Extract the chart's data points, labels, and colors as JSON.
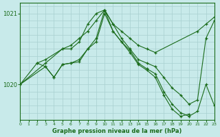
{
  "bg_color": "#c8eaea",
  "grid_color": "#a8d0d0",
  "line_color": "#1a6b1a",
  "title": "Graphe pression niveau de la mer (hPa)",
  "xmin": 0,
  "xmax": 23,
  "ymin": 1019.5,
  "ymax": 1021.15,
  "yticks": [
    1020,
    1021
  ],
  "lines": [
    {
      "x": [
        0,
        2,
        3,
        5,
        6,
        7,
        8,
        9,
        10,
        11,
        12,
        13,
        14,
        15,
        16,
        21,
        22,
        23
      ],
      "y": [
        1020.0,
        1020.3,
        1020.35,
        1020.5,
        1020.55,
        1020.65,
        1020.75,
        1020.9,
        1021.05,
        1020.85,
        1020.75,
        1020.65,
        1020.55,
        1020.5,
        1020.45,
        1020.75,
        1020.85,
        1020.95
      ]
    },
    {
      "x": [
        0,
        3,
        5,
        6,
        7,
        8,
        9,
        10,
        11,
        12,
        13,
        14,
        15,
        16,
        17,
        18,
        19,
        20,
        21,
        22,
        23
      ],
      "y": [
        1020.0,
        1020.3,
        1020.5,
        1020.5,
        1020.6,
        1020.85,
        1021.0,
        1021.05,
        1020.85,
        1020.65,
        1020.5,
        1020.35,
        1020.3,
        1020.25,
        1020.1,
        1019.95,
        1019.85,
        1019.72,
        1019.78,
        1020.65,
        1020.9
      ]
    },
    {
      "x": [
        0,
        3,
        4,
        5,
        6,
        7,
        8,
        9,
        10,
        11,
        12,
        13,
        14,
        15,
        16,
        17,
        18,
        19,
        20,
        21,
        22,
        23
      ],
      "y": [
        1020.0,
        1020.25,
        1020.1,
        1020.28,
        1020.3,
        1020.35,
        1020.5,
        1020.65,
        1021.05,
        1020.75,
        1020.6,
        1020.48,
        1020.3,
        1020.22,
        1020.15,
        1019.9,
        1019.72,
        1019.6,
        1019.55,
        1019.62,
        1020.0,
        1019.7
      ]
    },
    {
      "x": [
        2,
        3,
        4,
        5,
        6,
        7,
        8,
        9,
        10,
        11,
        12,
        13,
        14,
        15,
        16,
        17,
        18,
        19,
        20
      ],
      "y": [
        1020.3,
        1020.25,
        1020.1,
        1020.28,
        1020.3,
        1020.32,
        1020.5,
        1020.6,
        1021.0,
        1020.75,
        1020.6,
        1020.45,
        1020.28,
        1020.2,
        1020.1,
        1019.85,
        1019.65,
        1019.55,
        1019.58
      ]
    }
  ]
}
